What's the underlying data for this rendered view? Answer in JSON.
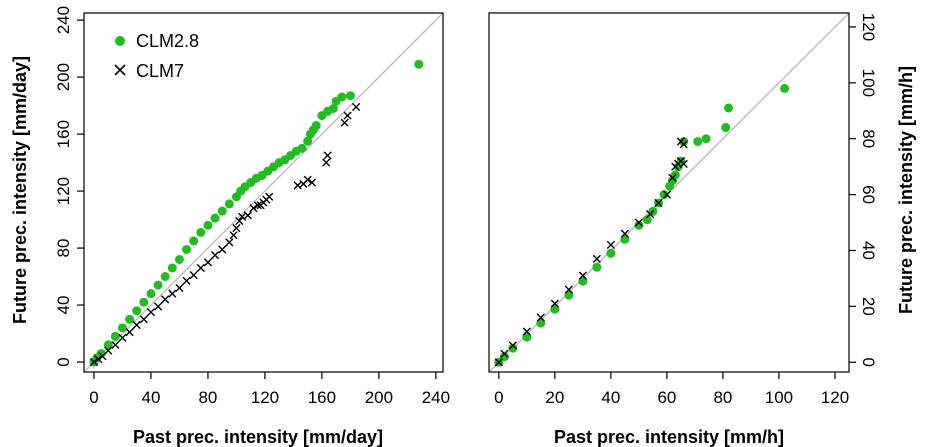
{
  "colors": {
    "clm28": "#22bb22",
    "clm7": "#000000",
    "diagonal": "#bdbdbd",
    "frame": "#000000"
  },
  "legend": {
    "entries": [
      {
        "label": "CLM2.8",
        "marker": "filled-circle"
      },
      {
        "label": "CLM7",
        "marker": "cross"
      }
    ],
    "placement": "top-left of left panel"
  },
  "chart_data": [
    {
      "type": "scatter",
      "panel": "left",
      "xlabel": "Past prec. intensity [mm/day]",
      "ylabel": "Future prec. intensity [mm/day]",
      "ylabel_side": "left",
      "xlim": [
        -7,
        245
      ],
      "ylim": [
        -7,
        245
      ],
      "xticks": [
        0,
        40,
        80,
        120,
        160,
        200,
        240
      ],
      "yticks": [
        0,
        40,
        80,
        120,
        160,
        200,
        240
      ],
      "reference_line": "y = x",
      "series": [
        {
          "name": "CLM2.8",
          "marker": "circle",
          "points": [
            [
              0,
              0
            ],
            [
              2,
              3
            ],
            [
              5,
              6
            ],
            [
              10,
              12
            ],
            [
              15,
              18
            ],
            [
              20,
              24
            ],
            [
              25,
              30
            ],
            [
              30,
              36
            ],
            [
              35,
              42
            ],
            [
              40,
              48
            ],
            [
              45,
              54
            ],
            [
              50,
              60
            ],
            [
              55,
              66
            ],
            [
              60,
              72
            ],
            [
              65,
              79
            ],
            [
              70,
              85
            ],
            [
              75,
              91
            ],
            [
              80,
              96
            ],
            [
              85,
              101
            ],
            [
              90,
              106
            ],
            [
              95,
              111
            ],
            [
              100,
              116
            ],
            [
              103,
              120
            ],
            [
              106,
              123
            ],
            [
              110,
              126
            ],
            [
              114,
              129
            ],
            [
              118,
              131
            ],
            [
              122,
              134
            ],
            [
              126,
              137
            ],
            [
              130,
              140
            ],
            [
              134,
              142
            ],
            [
              138,
              145
            ],
            [
              142,
              148
            ],
            [
              146,
              150
            ],
            [
              150,
              155
            ],
            [
              152,
              160
            ],
            [
              154,
              163
            ],
            [
              156,
              166
            ],
            [
              160,
              173
            ],
            [
              164,
              176
            ],
            [
              168,
              178
            ],
            [
              170,
              183
            ],
            [
              174,
              186
            ],
            [
              180,
              187
            ],
            [
              228,
              209
            ]
          ]
        },
        {
          "name": "CLM7",
          "marker": "cross",
          "points": [
            [
              0,
              0
            ],
            [
              3,
              2
            ],
            [
              6,
              4
            ],
            [
              10,
              8
            ],
            [
              15,
              12
            ],
            [
              20,
              17
            ],
            [
              25,
              21
            ],
            [
              30,
              26
            ],
            [
              35,
              30
            ],
            [
              40,
              35
            ],
            [
              45,
              39
            ],
            [
              50,
              44
            ],
            [
              55,
              48
            ],
            [
              60,
              52
            ],
            [
              65,
              57
            ],
            [
              70,
              61
            ],
            [
              75,
              66
            ],
            [
              80,
              70
            ],
            [
              85,
              75
            ],
            [
              90,
              79
            ],
            [
              95,
              84
            ],
            [
              98,
              89
            ],
            [
              100,
              94
            ],
            [
              102,
              99
            ],
            [
              104,
              102
            ],
            [
              108,
              103
            ],
            [
              112,
              108
            ],
            [
              115,
              110
            ],
            [
              117,
              110
            ],
            [
              119,
              112
            ],
            [
              121,
              114
            ],
            [
              123,
              116
            ],
            [
              143,
              124
            ],
            [
              147,
              125
            ],
            [
              150,
              128
            ],
            [
              153,
              126
            ],
            [
              163,
              140
            ],
            [
              164,
              145
            ],
            [
              176,
              168
            ],
            [
              178,
              173
            ],
            [
              184,
              179
            ]
          ]
        }
      ]
    },
    {
      "type": "scatter",
      "panel": "right",
      "xlabel": "Past prec. intensity [mm/h]",
      "ylabel": "Future prec. intensity [mm/h]",
      "ylabel_side": "right",
      "xlim": [
        -3.5,
        125
      ],
      "ylim": [
        -3.5,
        125
      ],
      "xticks": [
        0,
        20,
        40,
        60,
        80,
        100,
        120
      ],
      "yticks": [
        0,
        20,
        40,
        60,
        80,
        100,
        120
      ],
      "reference_line": "y = x",
      "series": [
        {
          "name": "CLM2.8",
          "marker": "circle",
          "points": [
            [
              0,
              0
            ],
            [
              2,
              2
            ],
            [
              5,
              5
            ],
            [
              10,
              9
            ],
            [
              15,
              14
            ],
            [
              20,
              19
            ],
            [
              25,
              24
            ],
            [
              30,
              29
            ],
            [
              35,
              34
            ],
            [
              40,
              39
            ],
            [
              45,
              44
            ],
            [
              50,
              49
            ],
            [
              53,
              51
            ],
            [
              55,
              54
            ],
            [
              57,
              57
            ],
            [
              59,
              60
            ],
            [
              61,
              63
            ],
            [
              62,
              65
            ],
            [
              63,
              67
            ],
            [
              64,
              70
            ],
            [
              65,
              72
            ],
            [
              66,
              79
            ],
            [
              71,
              79
            ],
            [
              74,
              80
            ],
            [
              81,
              84
            ],
            [
              82,
              91
            ],
            [
              102,
              98
            ]
          ]
        },
        {
          "name": "CLM7",
          "marker": "cross",
          "points": [
            [
              0,
              0
            ],
            [
              2,
              3
            ],
            [
              5,
              6
            ],
            [
              10,
              11
            ],
            [
              15,
              16
            ],
            [
              20,
              21
            ],
            [
              25,
              26
            ],
            [
              30,
              31
            ],
            [
              35,
              37
            ],
            [
              40,
              42
            ],
            [
              45,
              46
            ],
            [
              50,
              50
            ],
            [
              54,
              53
            ],
            [
              57,
              57
            ],
            [
              60,
              60
            ],
            [
              62,
              66
            ],
            [
              63,
              70
            ],
            [
              64,
              71
            ],
            [
              65,
              72
            ],
            [
              66,
              71
            ],
            [
              65,
              79
            ],
            [
              66,
              78
            ]
          ]
        }
      ]
    }
  ]
}
